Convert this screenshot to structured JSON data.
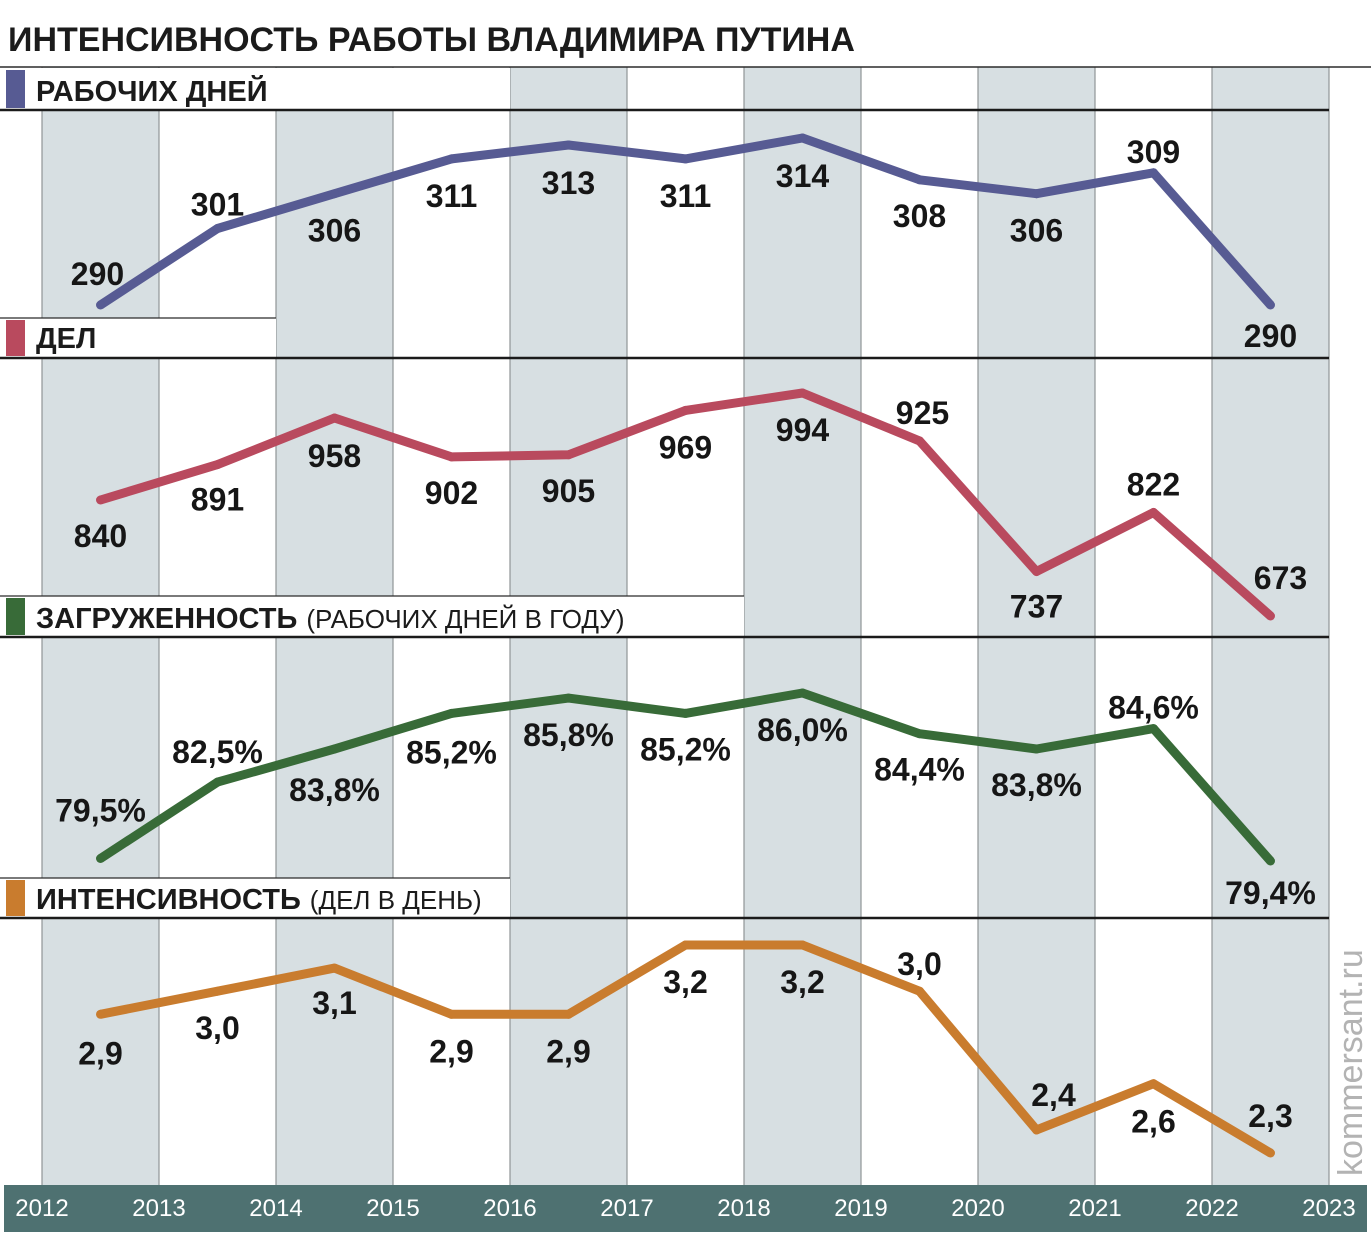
{
  "chart_data": {
    "type": "line",
    "title": "ИНТЕНСИВНОСТЬ РАБОТЫ ВЛАДИМИРА ПУТИНА",
    "x": [
      2012,
      2013,
      2014,
      2015,
      2016,
      2017,
      2018,
      2019,
      2020,
      2021,
      2022
    ],
    "xticks": [
      "2012",
      "2013",
      "2014",
      "2015",
      "2016",
      "2017",
      "2018",
      "2019",
      "2020",
      "2021",
      "2022",
      "2023"
    ],
    "grid": true,
    "series": [
      {
        "name": "РАБОЧИХ ДНЕЙ",
        "color": "#575b93",
        "values": [
          290,
          301,
          306,
          311,
          313,
          311,
          314,
          308,
          306,
          309,
          290
        ],
        "labels": [
          "290",
          "301",
          "306",
          "311",
          "313",
          "311",
          "314",
          "308",
          "306",
          "309",
          "290"
        ]
      },
      {
        "name": "ДЕЛ",
        "color": "#b94a5e",
        "values": [
          840,
          891,
          958,
          902,
          905,
          969,
          994,
          925,
          737,
          822,
          673
        ],
        "labels": [
          "840",
          "891",
          "958",
          "902",
          "905",
          "969",
          "994",
          "925",
          "737",
          "822",
          "673"
        ]
      },
      {
        "name": "ЗАГРУЖЕННОСТЬ",
        "note": "(РАБОЧИХ ДНЕЙ В ГОДУ)",
        "color": "#386b38",
        "values": [
          79.5,
          82.5,
          83.8,
          85.2,
          85.8,
          85.2,
          86.0,
          84.4,
          83.8,
          84.6,
          79.4
        ],
        "labels": [
          "79,5%",
          "82,5%",
          "83,8%",
          "85,2%",
          "85,8%",
          "85,2%",
          "86,0%",
          "84,4%",
          "83,8%",
          "84,6%",
          "79,4%"
        ]
      },
      {
        "name": "ИНТЕНСИВНОСТЬ",
        "note": "(ДЕЛ В ДЕНЬ)",
        "color": "#c97c2e",
        "values": [
          2.9,
          3.0,
          3.1,
          2.9,
          2.9,
          3.2,
          3.2,
          3.0,
          2.4,
          2.6,
          2.3
        ],
        "labels": [
          "2,9",
          "3,0",
          "3,1",
          "2,9",
          "2,9",
          "3,2",
          "3,2",
          "3,0",
          "2,4",
          "2,6",
          "2,3"
        ]
      }
    ]
  },
  "source": "kommersant.ru"
}
